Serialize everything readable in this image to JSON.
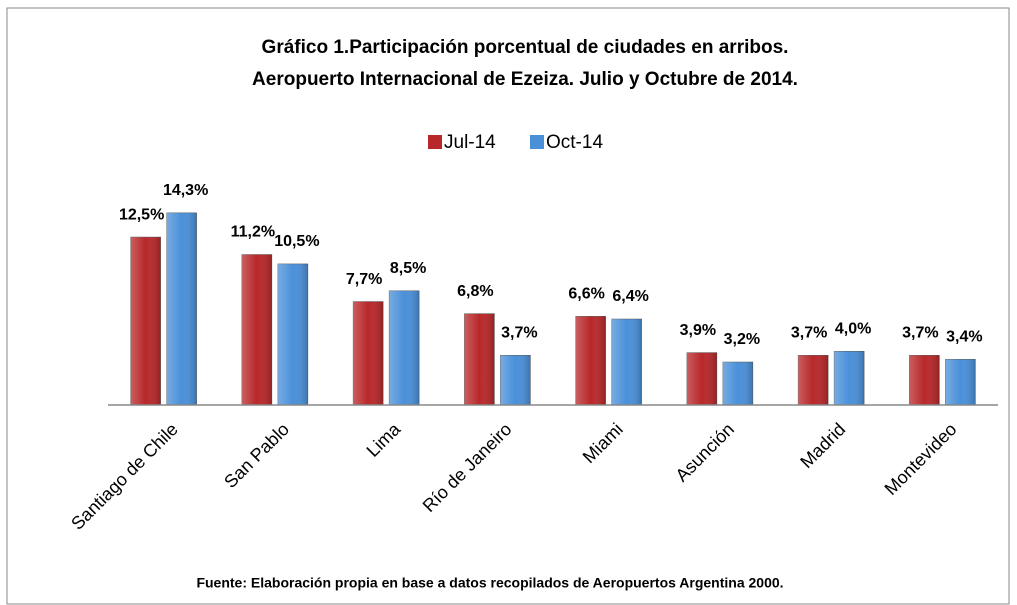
{
  "chart_data": {
    "type": "bar",
    "title": "Gráfico 1.Participación porcentual de ciudades en arribos.",
    "subtitle": "Aeropuerto Internacional de Ezeiza. Julio y Octubre de 2014.",
    "categories": [
      "Santiago de Chile",
      "San Pablo",
      "Lima",
      "Río de Janeiro",
      "Miami",
      "Asunción",
      "Madrid",
      "Montevideo"
    ],
    "series": [
      {
        "name": "Jul-14",
        "color": "#b8282a",
        "values": [
          12.5,
          11.2,
          7.7,
          6.8,
          6.6,
          3.9,
          3.7,
          3.7
        ],
        "value_labels": [
          "12,5%",
          "11,2%",
          "7,7%",
          "6,8%",
          "6,6%",
          "3,9%",
          "3,7%",
          "3,7%"
        ]
      },
      {
        "name": "Oct-14",
        "color": "#4a90d9",
        "values": [
          14.3,
          10.5,
          8.5,
          3.7,
          6.4,
          3.2,
          4.0,
          3.4
        ],
        "value_labels": [
          "14,3%",
          "10,5%",
          "8,5%",
          "3,7%",
          "6,4%",
          "3,2%",
          "4,0%",
          "3,4%"
        ]
      }
    ],
    "ylim": [
      0,
      16
    ],
    "legend": "top",
    "note": "Fuente: Elaboración propia en base a datos recopilados de Aeropuertos Argentina 2000."
  }
}
